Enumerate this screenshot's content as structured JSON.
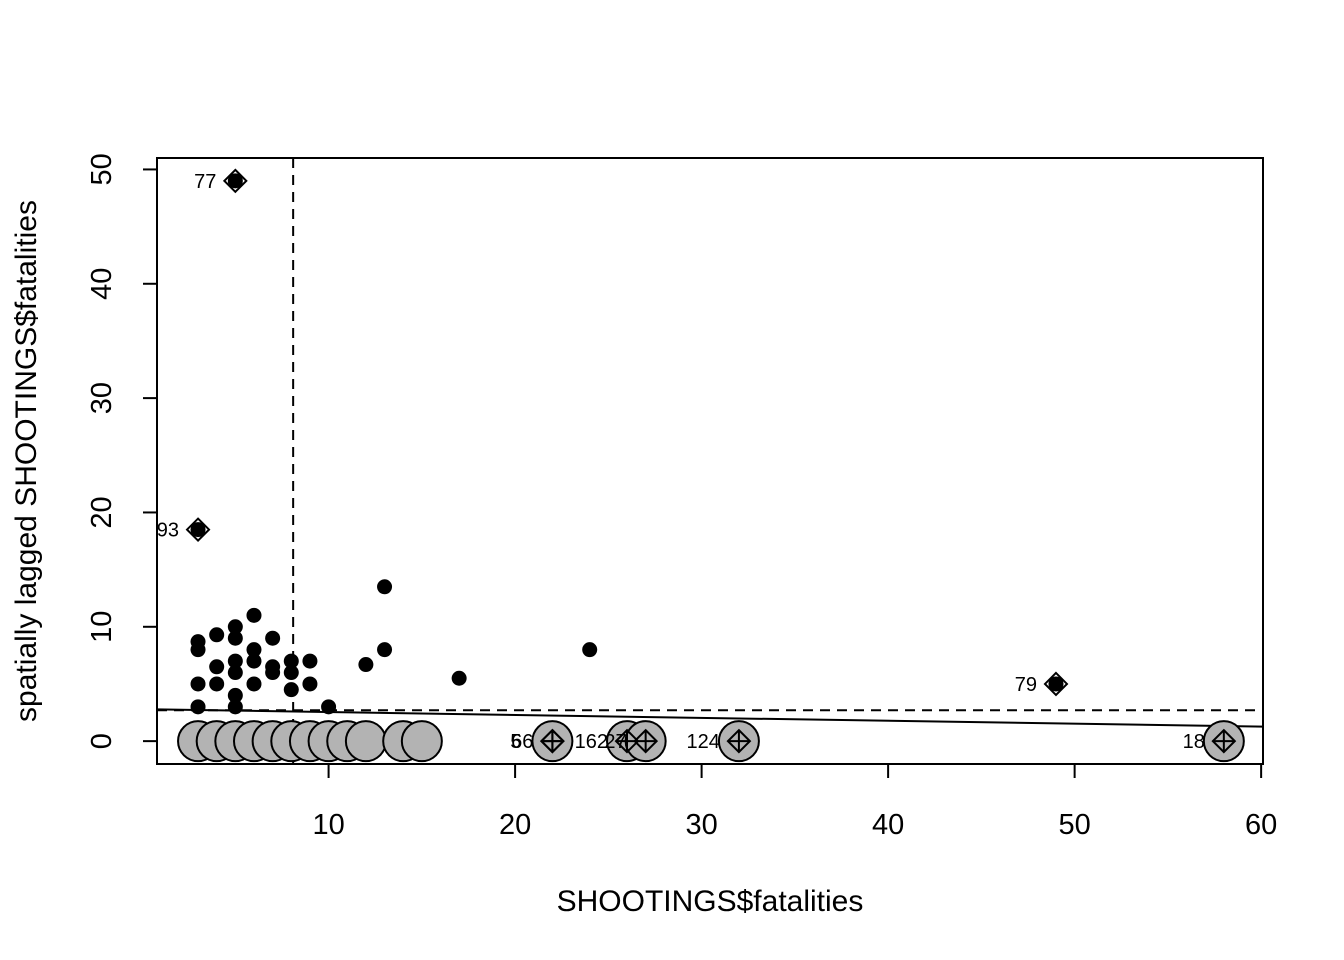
{
  "chart_data": {
    "type": "scatter",
    "title": "",
    "xlabel": "SHOOTINGS$fatalities",
    "ylabel": "spatially lagged SHOOTINGS$fatalities",
    "xlim": [
      0.8,
      60.1
    ],
    "ylim": [
      -2,
      51
    ],
    "x_ticks": [
      10,
      20,
      30,
      40,
      50,
      60
    ],
    "y_ticks": [
      0,
      10,
      20,
      30,
      40,
      50
    ],
    "grid": false,
    "legend": "none",
    "mean_lines": {
      "x": 8.1,
      "y": 2.7
    },
    "regression_line": {
      "intercept": 2.8,
      "slope": -0.0255
    },
    "colors": {
      "points": "#000000",
      "zero_lag_fill": "#b3b3b3",
      "axes": "#000000"
    },
    "points": [
      {
        "x": 3,
        "y": 8.7
      },
      {
        "x": 3,
        "y": 8.0
      },
      {
        "x": 3,
        "y": 5.0
      },
      {
        "x": 3,
        "y": 3.0
      },
      {
        "x": 4,
        "y": 9.3
      },
      {
        "x": 4,
        "y": 6.5
      },
      {
        "x": 4,
        "y": 5.0
      },
      {
        "x": 5,
        "y": 10.0
      },
      {
        "x": 5,
        "y": 9.0
      },
      {
        "x": 5,
        "y": 7.0
      },
      {
        "x": 5,
        "y": 6.0
      },
      {
        "x": 5,
        "y": 4.0
      },
      {
        "x": 5,
        "y": 3.0
      },
      {
        "x": 6,
        "y": 11.0
      },
      {
        "x": 6,
        "y": 8.0
      },
      {
        "x": 6,
        "y": 7.0
      },
      {
        "x": 6,
        "y": 5.0
      },
      {
        "x": 7,
        "y": 9.0
      },
      {
        "x": 7,
        "y": 6.5
      },
      {
        "x": 7,
        "y": 6.0
      },
      {
        "x": 8,
        "y": 7.0
      },
      {
        "x": 8,
        "y": 6.0
      },
      {
        "x": 8,
        "y": 4.5
      },
      {
        "x": 9,
        "y": 7.0
      },
      {
        "x": 9,
        "y": 5.0
      },
      {
        "x": 10,
        "y": 3.0
      },
      {
        "x": 12,
        "y": 6.7
      },
      {
        "x": 13,
        "y": 13.5
      },
      {
        "x": 13,
        "y": 8.0
      },
      {
        "x": 17,
        "y": 5.5
      },
      {
        "x": 24,
        "y": 8.0
      }
    ],
    "zero_lag_points": [
      {
        "x": 3,
        "y": 0
      },
      {
        "x": 4,
        "y": 0
      },
      {
        "x": 5,
        "y": 0
      },
      {
        "x": 6,
        "y": 0
      },
      {
        "x": 7,
        "y": 0
      },
      {
        "x": 8,
        "y": 0
      },
      {
        "x": 9,
        "y": 0
      },
      {
        "x": 10,
        "y": 0
      },
      {
        "x": 11,
        "y": 0
      },
      {
        "x": 12,
        "y": 0
      },
      {
        "x": 14,
        "y": 0
      },
      {
        "x": 15,
        "y": 0
      },
      {
        "x": 22,
        "y": 0
      },
      {
        "x": 26,
        "y": 0
      },
      {
        "x": 27,
        "y": 0
      },
      {
        "x": 32,
        "y": 0
      },
      {
        "x": 58,
        "y": 0
      }
    ],
    "influential_points": [
      {
        "label": "77",
        "x": 5,
        "y": 49,
        "marker": "diamond"
      },
      {
        "label": "93",
        "x": 3,
        "y": 18.5,
        "marker": "diamond"
      },
      {
        "label": "79",
        "x": 49,
        "y": 5,
        "marker": "diamond"
      },
      {
        "label": "66",
        "x": 22,
        "y": 0,
        "marker": "cross-diamond"
      },
      {
        "label": "5",
        "x": 22,
        "y": 0,
        "marker": "cross-diamond"
      },
      {
        "label": "162",
        "x": 26,
        "y": 0,
        "marker": "cross-diamond"
      },
      {
        "label": "27",
        "x": 27,
        "y": 0,
        "marker": "cross-diamond"
      },
      {
        "label": "124",
        "x": 32,
        "y": 0,
        "marker": "cross-diamond"
      },
      {
        "label": "18",
        "x": 58,
        "y": 0,
        "marker": "cross-diamond"
      }
    ]
  }
}
